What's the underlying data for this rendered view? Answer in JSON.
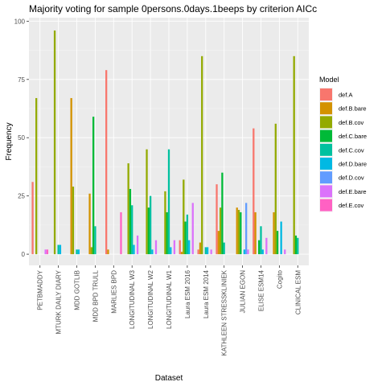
{
  "chart_data": {
    "type": "bar",
    "title": "Majority voting for sample 0persons.0days.1beeps by criterion AICc",
    "xlabel": "Dataset",
    "ylabel": "Frequency",
    "ylim": [
      0,
      100
    ],
    "yticks": [
      0,
      25,
      50,
      75,
      100
    ],
    "legend_title": "Model",
    "legend_position": "right",
    "grid": true,
    "categories": [
      "PETBMADDY",
      "MTURK DAILY DIARY",
      "MDD GOTLIB",
      "MDD BPD TRULL",
      "MARLIES BPD",
      "LONGITUDINAL W3",
      "LONGITUDINAL W2",
      "LONGITUDINAL W1",
      "Laura ESM 2016",
      "Laura ESM 2014",
      "KATHLEEN STRESSKLINIEK",
      "JULIAN EGON",
      "ELISE ESM14",
      "Cogito",
      "CLINICAL ESM"
    ],
    "series": [
      {
        "name": "def.A",
        "color": "#F8766D",
        "values": [
          31,
          0,
          0,
          0,
          79,
          0,
          0,
          0,
          6,
          2,
          30,
          0,
          54,
          0,
          0
        ]
      },
      {
        "name": "def.B.bare",
        "color": "#D39200",
        "values": [
          0,
          0,
          67,
          26,
          2,
          0,
          0,
          0,
          1,
          5,
          10,
          20,
          18,
          18,
          0
        ]
      },
      {
        "name": "def.B.cov",
        "color": "#93AA00",
        "values": [
          67,
          96,
          29,
          3,
          0,
          39,
          45,
          27,
          32,
          85,
          20,
          19,
          0,
          56,
          85
        ]
      },
      {
        "name": "def.C.bare",
        "color": "#00BA38",
        "values": [
          0,
          0,
          0,
          59,
          0,
          28,
          20,
          18,
          14,
          0,
          35,
          18,
          6,
          10,
          8
        ]
      },
      {
        "name": "def.C.cov",
        "color": "#00C19F",
        "values": [
          0,
          4,
          2,
          12,
          0,
          21,
          25,
          45,
          17,
          3,
          5,
          0,
          12,
          0,
          7
        ]
      },
      {
        "name": "def.D.bare",
        "color": "#00B9E3",
        "values": [
          0,
          4,
          2,
          0,
          0,
          4,
          2,
          3,
          6,
          3,
          0,
          2,
          2,
          14,
          0
        ]
      },
      {
        "name": "def.D.cov",
        "color": "#619CFF",
        "values": [
          0,
          0,
          0,
          0,
          0,
          0,
          0,
          0,
          0,
          0,
          0,
          22,
          0,
          0,
          0
        ]
      },
      {
        "name": "def.E.bare",
        "color": "#DB72FB",
        "values": [
          2,
          0,
          0,
          0,
          0,
          8,
          6,
          6,
          22,
          2,
          0,
          2,
          7,
          2,
          0
        ]
      },
      {
        "name": "def.E.cov",
        "color": "#FF61C3",
        "values": [
          2,
          0,
          0,
          0,
          18,
          0,
          0,
          0,
          0,
          0,
          0,
          0,
          0,
          0,
          0
        ]
      }
    ]
  }
}
